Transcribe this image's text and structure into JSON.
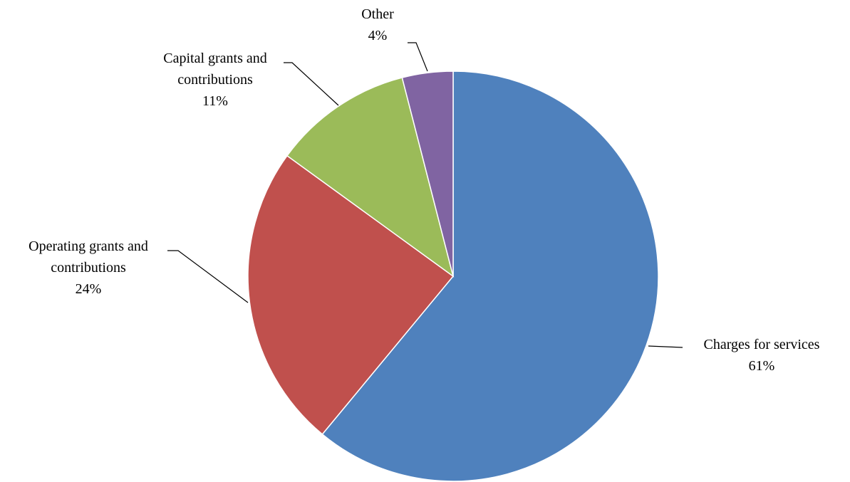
{
  "chart_data": {
    "type": "pie",
    "start_angle": "12 o'clock",
    "direction": "clockwise",
    "slices": [
      {
        "label_lines": [
          "Charges for services"
        ],
        "value": 61,
        "percent_label": "61%",
        "color": "#4F81BD"
      },
      {
        "label_lines": [
          "Operating grants and",
          "contributions"
        ],
        "value": 24,
        "percent_label": "24%",
        "color": "#C0504D"
      },
      {
        "label_lines": [
          "Capital grants and",
          "contributions"
        ],
        "value": 11,
        "percent_label": "11%",
        "color": "#9BBB59"
      },
      {
        "label_lines": [
          "Other"
        ],
        "value": 4,
        "percent_label": "4%",
        "color": "#8064A2"
      }
    ]
  }
}
